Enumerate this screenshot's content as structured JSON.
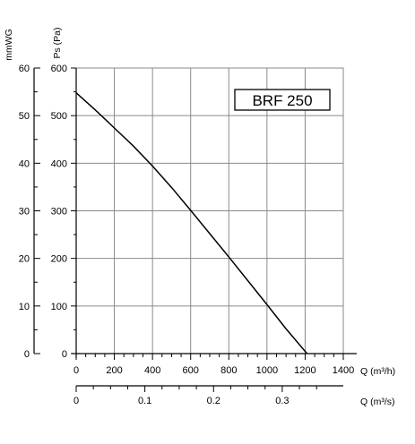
{
  "chart_data": {
    "type": "line",
    "title": "BRF 250",
    "series": [
      {
        "x": [
          0,
          100,
          200,
          300,
          400,
          500,
          600,
          700,
          800,
          900,
          1000,
          1100,
          1210
        ],
        "y": [
          548,
          512,
          474,
          436,
          394,
          349,
          301,
          252,
          203,
          153,
          103,
          52,
          0
        ]
      }
    ],
    "x_axis": {
      "label": "Q (m³/h)",
      "range": [
        0,
        1400
      ],
      "ticks": [
        "0",
        "200",
        "400",
        "600",
        "800",
        "1000",
        "1200",
        "1400"
      ]
    },
    "y_axis": {
      "label": "Ps (Pa)",
      "range": [
        0,
        600
      ],
      "ticks": [
        "0",
        "100",
        "200",
        "300",
        "400",
        "500",
        "600"
      ]
    },
    "secondary_y_axis": {
      "label": "mmWG",
      "range": [
        0,
        60
      ],
      "ticks": [
        "0",
        "10",
        "20",
        "30",
        "40",
        "50",
        "60"
      ]
    },
    "secondary_x_axis": {
      "label": "Q (m³/s)",
      "ticks": [
        {
          "value": 0,
          "label": "0"
        },
        {
          "value": 0.1,
          "label": "0.1"
        },
        {
          "value": 0.2,
          "label": "0.2"
        },
        {
          "value": 0.3,
          "label": "0.3"
        }
      ]
    },
    "grid": true
  }
}
